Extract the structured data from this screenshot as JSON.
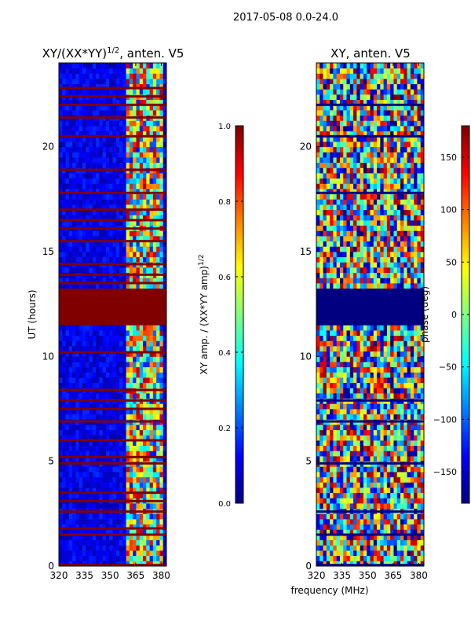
{
  "figure": {
    "suptitle": "2017-05-08 0.0-24.0",
    "shared_xlabel": "frequency (MHz)"
  },
  "chart_data": [
    {
      "type": "heatmap",
      "title_main": "XY/(XX*YY)",
      "title_sup": "1/2",
      "title_tail": ", anten. V5",
      "ylabel": "UT (hours)",
      "xlim": [
        320,
        383
      ],
      "ylim": [
        0,
        24
      ],
      "xticks": [
        320,
        335,
        350,
        365,
        380
      ],
      "yticks": [
        0,
        5,
        10,
        15,
        20
      ],
      "colormap": "jet",
      "colorbar": {
        "label_main": "XY amp. / (XX*YY amp)",
        "label_sup": "1/2",
        "range": [
          0.0,
          1.0
        ],
        "ticks": [
          0.0,
          0.2,
          0.4,
          0.6,
          0.8,
          1.0
        ],
        "tick_labels": [
          "0.0",
          "0.2",
          "0.4",
          "0.6",
          "0.8",
          "1.0"
        ]
      },
      "masked_band_ut": [
        11.6,
        13.2
      ],
      "masked_value": 1.0,
      "saturated_rows_ut": [
        0.05,
        1.5,
        1.8,
        2.6,
        3.1,
        3.5,
        4.9,
        5.2,
        6.0,
        6.9,
        7.5,
        7.9,
        8.4,
        10.2,
        13.5,
        13.9,
        14.4,
        15.5,
        16.1,
        16.5,
        17.0,
        17.8,
        18.9,
        20.5,
        21.4,
        22.0,
        22.4,
        22.8
      ],
      "background_level": 0.1,
      "active_band_mhz": [
        360,
        382
      ],
      "active_band_level": 0.55
    },
    {
      "type": "heatmap",
      "title": "XY, anten. V5",
      "xlim": [
        320,
        383
      ],
      "ylim": [
        0,
        24
      ],
      "xticks": [
        320,
        335,
        350,
        365,
        380
      ],
      "yticks": [
        0,
        5,
        10,
        15,
        20
      ],
      "colormap": "jet",
      "colorbar": {
        "label": "phase (deg)",
        "range": [
          -180,
          180
        ],
        "ticks": [
          -150,
          -100,
          -50,
          0,
          50,
          100,
          150
        ],
        "tick_labels": [
          "−150",
          "−100",
          "−50",
          "0",
          "50",
          "100",
          "150"
        ]
      },
      "masked_band_ut": [
        11.6,
        13.2
      ],
      "masked_value": -180,
      "dark_rows_ut": [
        0.05,
        1.5,
        2.6,
        4.9,
        6.9,
        7.9,
        17.8,
        20.5,
        22.0
      ]
    }
  ],
  "colors": {
    "jet_dark_blue": "#00008f",
    "jet_dark_red": "#800000"
  }
}
